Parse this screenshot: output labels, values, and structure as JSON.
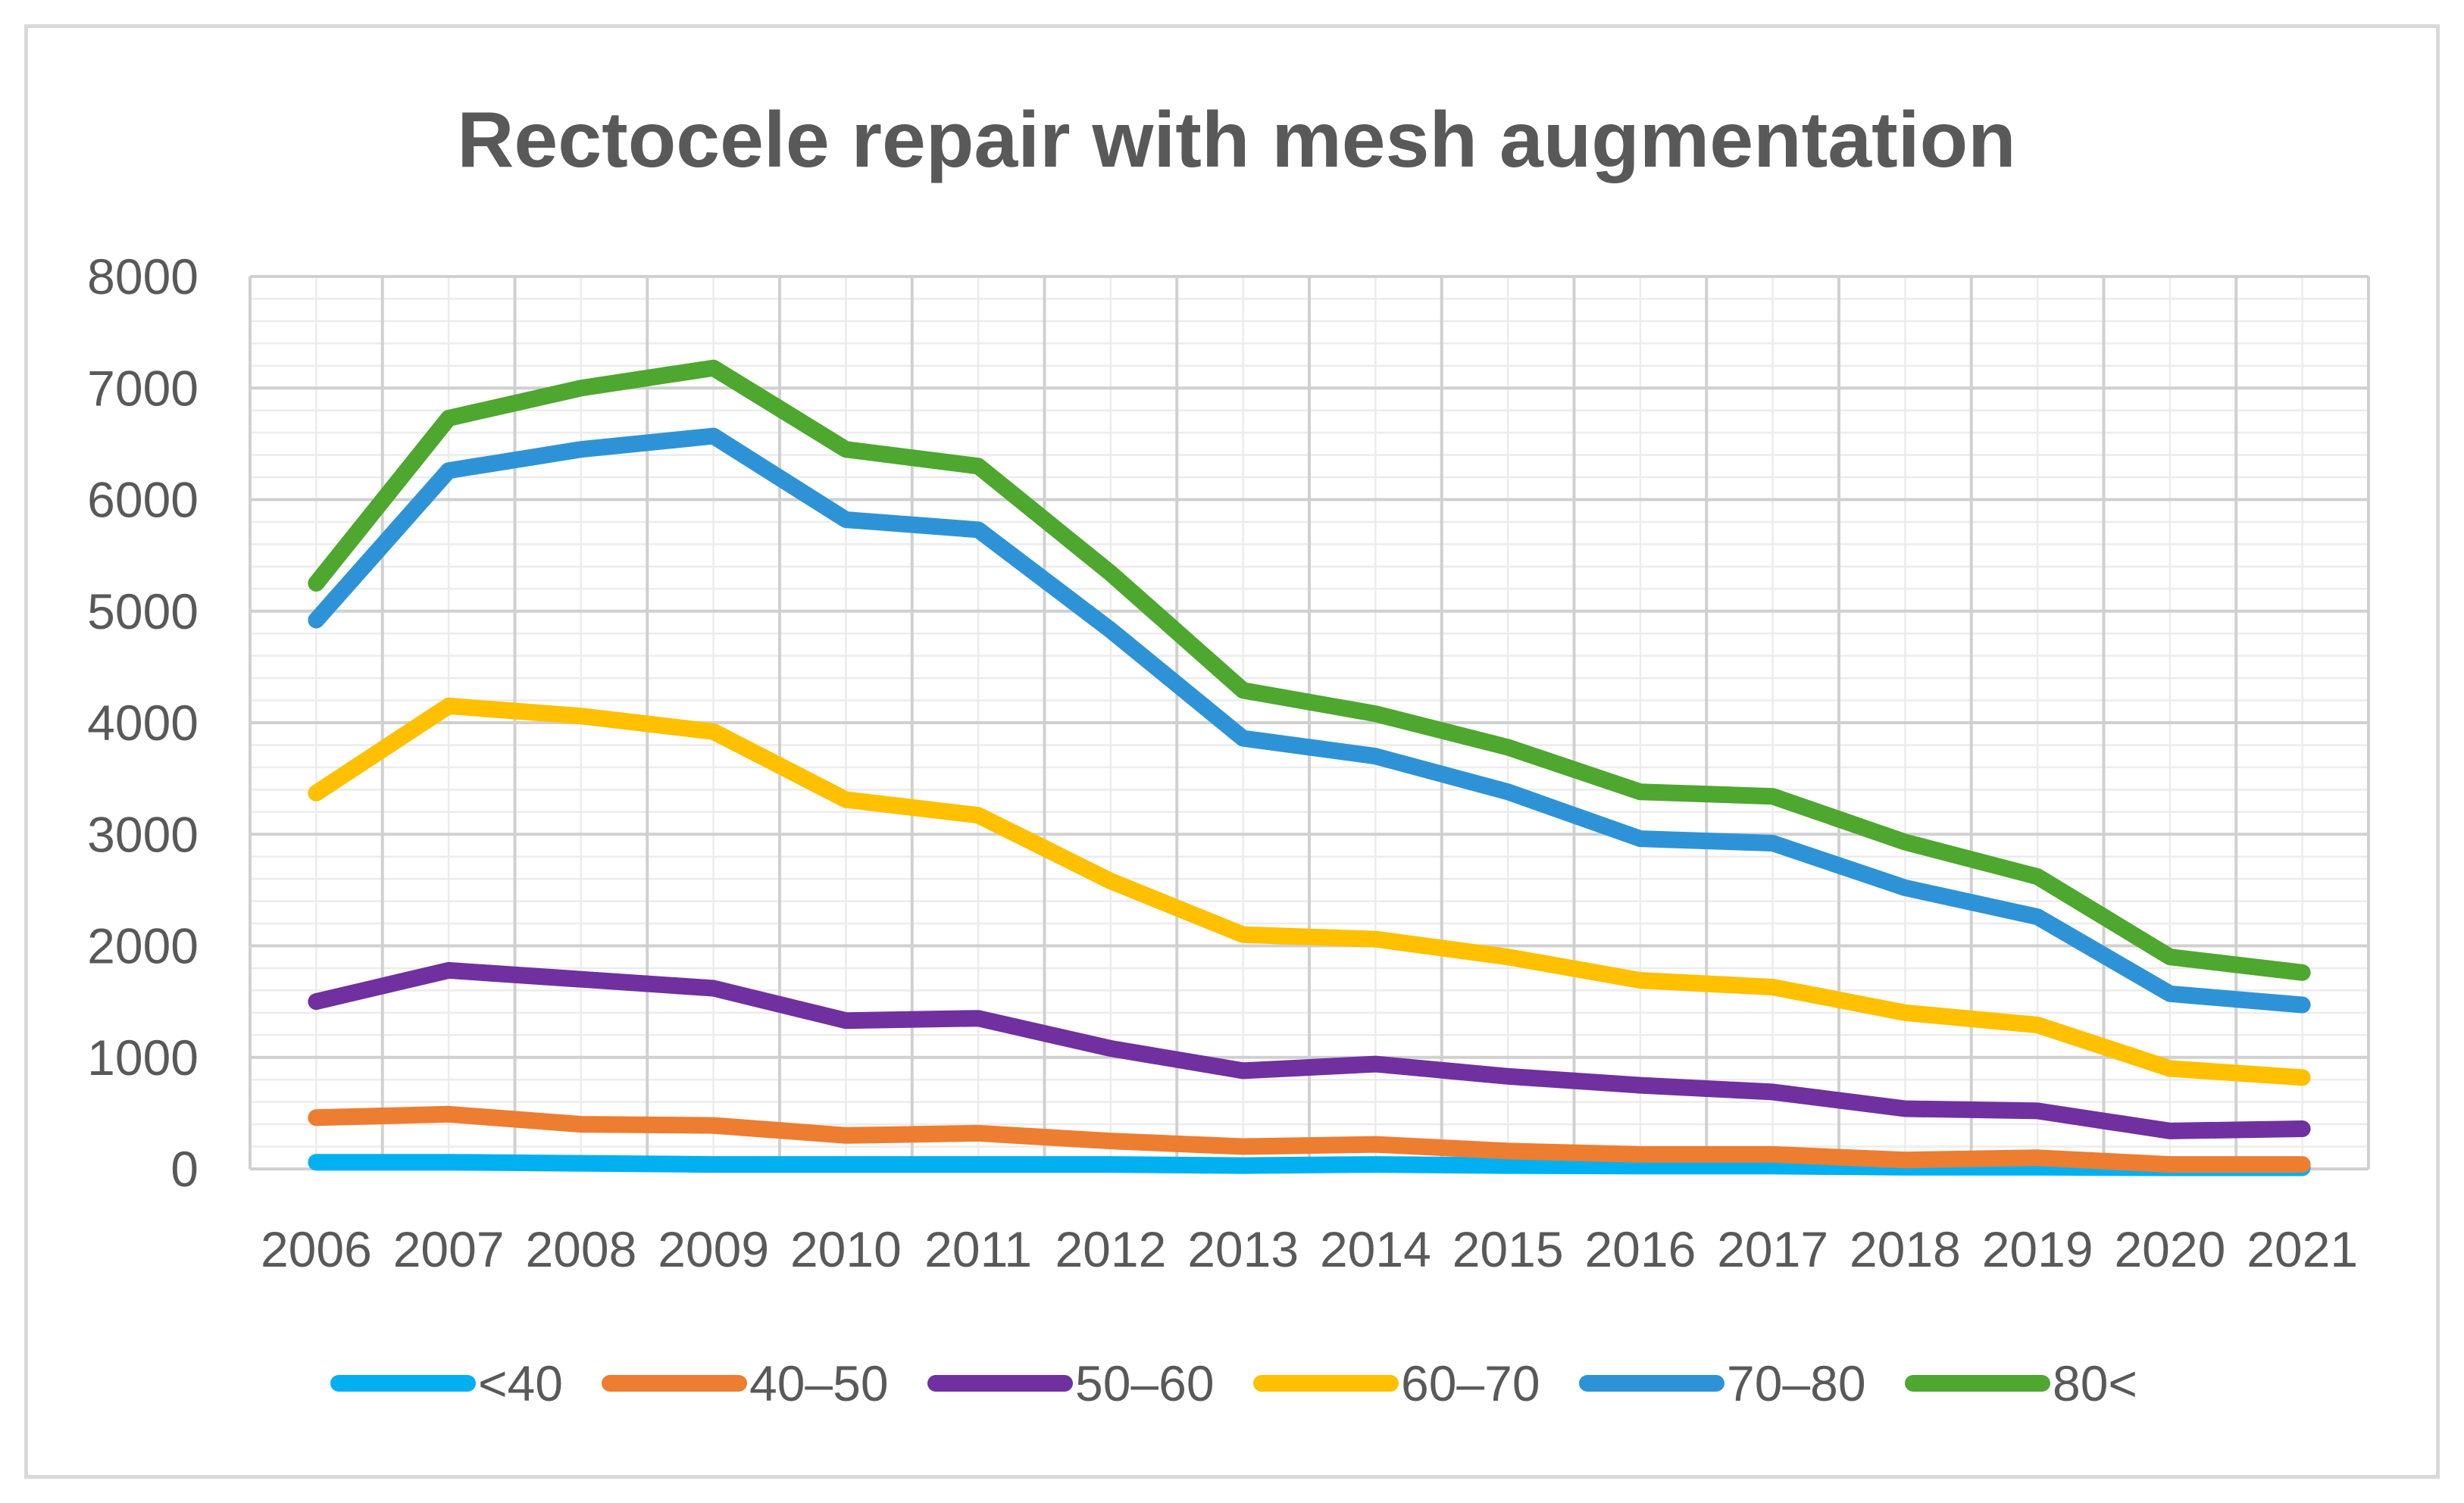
{
  "chart_data": {
    "type": "line",
    "title": "Rectocele repair with mesh augmentation",
    "xlabel": "",
    "ylabel": "",
    "categories": [
      "2006",
      "2007",
      "2008",
      "2009",
      "2010",
      "2011",
      "2012",
      "2013",
      "2014",
      "2015",
      "2016",
      "2017",
      "2018",
      "2019",
      "2020",
      "2021"
    ],
    "ylim": [
      0,
      8000
    ],
    "yticks": [
      0,
      1000,
      2000,
      3000,
      4000,
      5000,
      6000,
      7000,
      8000
    ],
    "grid": "on",
    "legend_position": "bottom",
    "series": [
      {
        "name": "<40",
        "color": "#00b0f0",
        "values": [
          60,
          60,
          50,
          40,
          40,
          40,
          40,
          30,
          40,
          30,
          25,
          25,
          15,
          15,
          10,
          10
        ]
      },
      {
        "name": "40–50",
        "color": "#ed7d31",
        "values": [
          460,
          490,
          400,
          390,
          300,
          320,
          250,
          200,
          220,
          160,
          130,
          130,
          80,
          100,
          40,
          40
        ]
      },
      {
        "name": "50–60",
        "color": "#7030a0",
        "values": [
          1500,
          1780,
          1700,
          1620,
          1330,
          1350,
          1080,
          880,
          940,
          830,
          750,
          690,
          540,
          520,
          340,
          360
        ]
      },
      {
        "name": "60–70",
        "color": "#ffc000",
        "values": [
          3370,
          4150,
          4060,
          3920,
          3310,
          3170,
          2580,
          2100,
          2060,
          1900,
          1690,
          1630,
          1400,
          1290,
          900,
          820
        ]
      },
      {
        "name": "70–80",
        "color": "#2e93d6",
        "values": [
          4920,
          6260,
          6450,
          6570,
          5820,
          5730,
          4830,
          3860,
          3700,
          3380,
          2960,
          2920,
          2520,
          2260,
          1570,
          1470
        ]
      },
      {
        "name": "80<",
        "color": "#4ea72e",
        "values": [
          5250,
          6730,
          7000,
          7180,
          6450,
          6300,
          5340,
          4290,
          4080,
          3780,
          3380,
          3340,
          2930,
          2620,
          1900,
          1760
        ]
      }
    ]
  }
}
